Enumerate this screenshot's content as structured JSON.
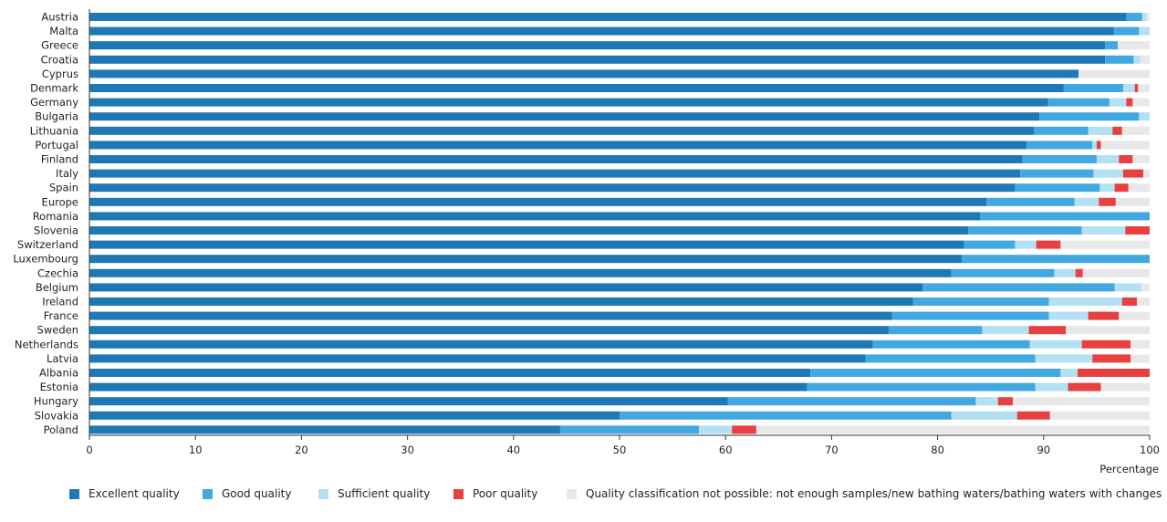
{
  "chart_data": {
    "type": "bar",
    "orientation": "horizontal",
    "stacked": true,
    "title": "",
    "xlabel": "Percentage",
    "ylabel": "",
    "xlim": [
      0,
      100
    ],
    "xticks": [
      0,
      10,
      20,
      30,
      40,
      50,
      60,
      70,
      80,
      90,
      100
    ],
    "grid": false,
    "legend_position": "bottom",
    "categories": [
      "Austria",
      "Malta",
      "Greece",
      "Croatia",
      "Cyprus",
      "Denmark",
      "Germany",
      "Bulgaria",
      "Lithuania",
      "Portugal",
      "Finland",
      "Italy",
      "Spain",
      "Europe",
      "Romania",
      "Slovenia",
      "Switzerland",
      "Luxembourg",
      "Czechia",
      "Belgium",
      "Ireland",
      "France",
      "Sweden",
      "Netherlands",
      "Latvia",
      "Albania",
      "Estonia",
      "Hungary",
      "Slovakia",
      "Poland"
    ],
    "series": [
      {
        "name": "Excellent quality",
        "color": "#1f78b4",
        "values": [
          97.8,
          96.6,
          95.8,
          95.8,
          93.3,
          91.9,
          90.4,
          89.6,
          89.1,
          88.4,
          88.0,
          87.8,
          87.3,
          84.6,
          84.0,
          82.9,
          82.5,
          82.3,
          81.3,
          78.6,
          77.7,
          75.7,
          75.4,
          73.9,
          73.2,
          68.0,
          67.7,
          60.2,
          50.0,
          44.4
        ]
      },
      {
        "name": "Good quality",
        "color": "#41a8e0",
        "values": [
          1.5,
          2.4,
          1.2,
          2.7,
          0.0,
          5.6,
          5.8,
          9.4,
          5.1,
          6.2,
          7.0,
          6.9,
          8.0,
          8.3,
          16.0,
          10.7,
          4.8,
          17.7,
          9.7,
          18.1,
          12.8,
          14.8,
          8.8,
          14.8,
          16.0,
          23.6,
          21.5,
          23.4,
          31.3,
          13.1
        ]
      },
      {
        "name": "Sufficient quality",
        "color": "#b3e0f2",
        "values": [
          0.4,
          1.0,
          0.0,
          0.6,
          0.0,
          1.1,
          1.6,
          1.0,
          2.3,
          0.4,
          2.1,
          2.8,
          1.4,
          2.3,
          0.0,
          4.1,
          2.0,
          0.0,
          2.0,
          2.5,
          6.9,
          3.7,
          4.4,
          4.9,
          5.4,
          1.6,
          3.1,
          2.1,
          6.2,
          3.1
        ]
      },
      {
        "name": "Poor quality",
        "color": "#e84040",
        "values": [
          0.0,
          0.0,
          0.0,
          0.0,
          0.0,
          0.3,
          0.6,
          0.0,
          0.9,
          0.4,
          1.3,
          1.9,
          1.3,
          1.6,
          0.0,
          2.3,
          2.3,
          0.0,
          0.7,
          0.0,
          1.4,
          2.9,
          3.5,
          4.6,
          3.6,
          6.8,
          3.1,
          1.4,
          3.1,
          2.3
        ]
      },
      {
        "name": "Quality classification not possible:  not enough samples/new bathing waters/bathing waters with changes",
        "color": "#e8e8e8",
        "values": [
          0.3,
          0.0,
          3.0,
          0.9,
          6.7,
          1.1,
          1.6,
          0.0,
          2.6,
          4.6,
          1.6,
          0.6,
          2.0,
          3.2,
          0.0,
          0.0,
          8.4,
          0.0,
          6.3,
          0.8,
          1.2,
          2.9,
          7.9,
          1.8,
          1.8,
          0.0,
          4.6,
          12.9,
          9.4,
          37.1
        ]
      }
    ]
  }
}
